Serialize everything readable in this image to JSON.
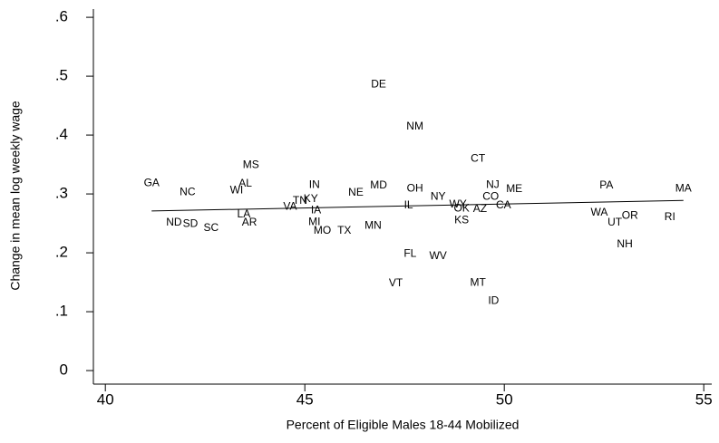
{
  "chart_data": {
    "type": "scatter",
    "xlabel": "Percent of Eligible Males 18-44 Mobilized",
    "ylabel": "Change in mean log weekly wage",
    "labels": [
      "GA",
      "NC",
      "WI",
      "AL",
      "MS",
      "ND",
      "SD",
      "SC",
      "LA",
      "AR",
      "VA",
      "TN",
      "KY",
      "IN",
      "IA",
      "MI",
      "MO",
      "TX",
      "NE",
      "MD",
      "MN",
      "DE",
      "NM",
      "OH",
      "IL",
      "FL",
      "VT",
      "WV",
      "NY",
      "WY",
      "OK",
      "KS",
      "AZ",
      "MT",
      "ID",
      "CT",
      "NJ",
      "CO",
      "CA",
      "ME",
      "PA",
      "WA",
      "UT",
      "OR",
      "NH",
      "MA",
      "RI"
    ],
    "x": [
      41.16,
      42.06,
      43.29,
      43.51,
      43.65,
      41.72,
      42.13,
      42.65,
      43.47,
      43.61,
      44.63,
      44.88,
      45.15,
      45.24,
      45.28,
      45.24,
      45.44,
      45.99,
      46.28,
      46.85,
      46.71,
      46.85,
      47.76,
      47.76,
      47.6,
      47.64,
      47.28,
      48.34,
      48.34,
      48.84,
      48.93,
      48.93,
      49.39,
      49.34,
      49.73,
      49.34,
      49.71,
      49.66,
      49.98,
      50.25,
      52.56,
      52.38,
      52.77,
      53.15,
      53.02,
      54.49,
      54.15
    ],
    "y": [
      0.318,
      0.303,
      0.306,
      0.317,
      0.349,
      0.251,
      0.249,
      0.242,
      0.265,
      0.251,
      0.278,
      0.288,
      0.291,
      0.315,
      0.272,
      0.252,
      0.237,
      0.237,
      0.302,
      0.314,
      0.246,
      0.486,
      0.414,
      0.309,
      0.28,
      0.198,
      0.148,
      0.194,
      0.295,
      0.282,
      0.275,
      0.255,
      0.274,
      0.149,
      0.118,
      0.36,
      0.315,
      0.295,
      0.28,
      0.308,
      0.314,
      0.268,
      0.251,
      0.263,
      0.214,
      0.309,
      0.26
    ],
    "fit_line": {
      "x": [
        41.16,
        54.49
      ],
      "y": [
        0.271,
        0.289
      ]
    },
    "xlim": [
      39.7,
      55.2
    ],
    "ylim": [
      -0.023,
      0.614
    ],
    "xticks": [
      40,
      45,
      50,
      55
    ],
    "yticks": [
      0,
      {
        "value": 0.1,
        "label": ".1"
      },
      {
        "value": 0.2,
        "label": ".2"
      },
      {
        "value": 0.3,
        "label": ".3"
      },
      {
        "value": 0.4,
        "label": ".4"
      },
      {
        "value": 0.5,
        "label": ".5"
      },
      {
        "value": 0.6,
        "label": ".6"
      }
    ],
    "grid": false
  }
}
